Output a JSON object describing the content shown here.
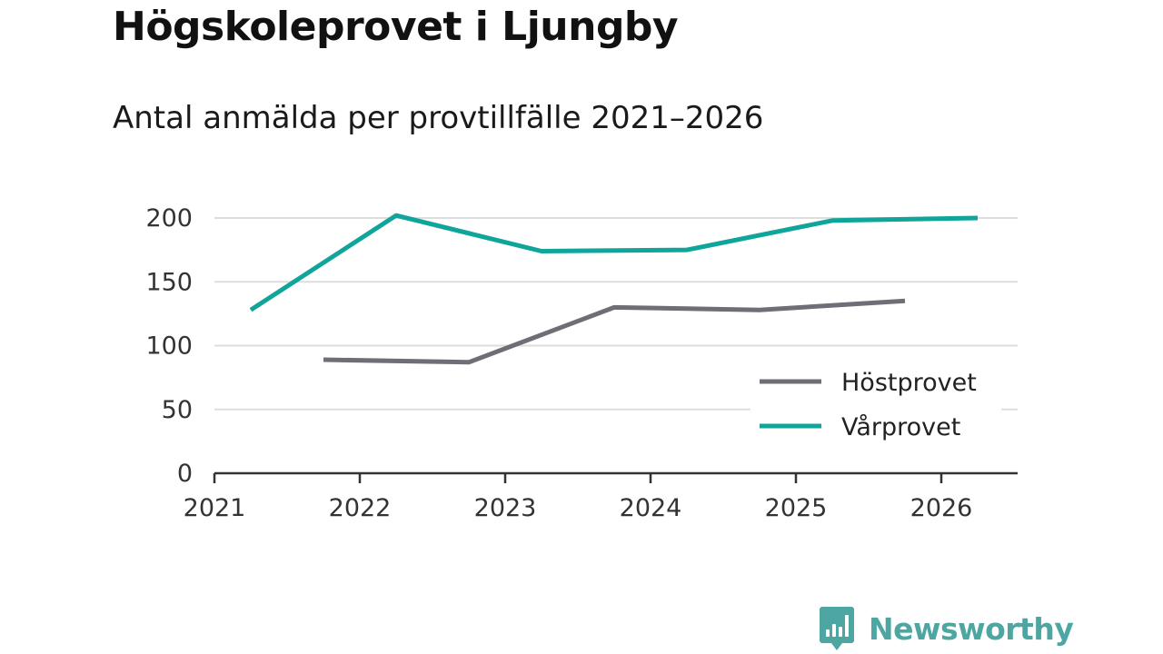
{
  "title": "Högskoleprovet i Ljungby",
  "subtitle": "Antal anmälda per provtillfälle 2021–2026",
  "chart_data": {
    "type": "line",
    "title": "Högskoleprovet i Ljungby",
    "subtitle": "Antal anmälda per provtillfälle 2021–2026",
    "xlabel": "",
    "ylabel": "",
    "xlim": [
      2021,
      2026.3
    ],
    "ylim": [
      0,
      200
    ],
    "x_ticks": [
      "2021",
      "2022",
      "2023",
      "2024",
      "2025",
      "2026"
    ],
    "y_ticks": [
      "0",
      "50",
      "100",
      "150",
      "200"
    ],
    "grid": true,
    "legend_position": "bottom-right",
    "series": [
      {
        "name": "Höstprovet",
        "color": "#6e6e76",
        "x": [
          2021.75,
          2022.75,
          2023.75,
          2024.75,
          2025.75
        ],
        "values": [
          89,
          87,
          130,
          128,
          135
        ]
      },
      {
        "name": "Vårprovet",
        "color": "#10a59a",
        "x": [
          2021.25,
          2022.25,
          2023.25,
          2024.25,
          2025.25,
          2026.25
        ],
        "values": [
          128,
          202,
          174,
          175,
          198,
          200
        ]
      }
    ]
  },
  "brand": {
    "name": "Newsworthy",
    "icon": "newsworthy-logo-icon",
    "color": "#4ea6a2"
  }
}
